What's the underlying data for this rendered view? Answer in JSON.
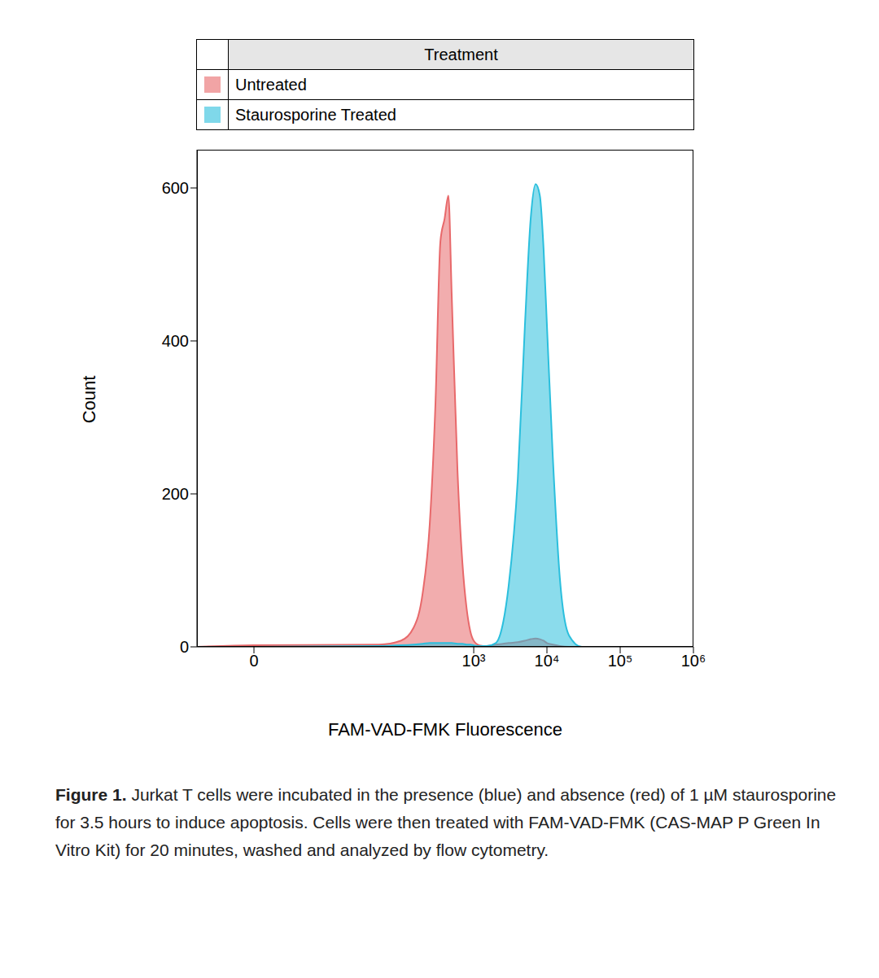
{
  "chart_data": {
    "type": "area",
    "legend_title": "Treatment",
    "x_label": "FAM-VAD-FMK Fluorescence",
    "y_label": "Count",
    "caption_label": "Figure 1.",
    "caption": "Jurkat T cells were incubated in the presence (blue) and absence (red) of 1 µM staurosporine for 3.5 hours to induce apoptosis. Cells were then treated with FAM-VAD-FMK (CAS-MAP P Green In Vitro Kit) for 20 minutes, washed and analyzed by flow cytometry.",
    "log": "x",
    "x": [
      -5,
      0,
      50,
      100,
      150,
      200,
      250,
      300,
      350,
      400,
      450,
      500,
      600,
      700,
      800,
      900,
      1000,
      1200,
      1500,
      2000,
      2500,
      3000,
      4000,
      5000,
      6000,
      7000,
      8000,
      9000,
      10000,
      12000,
      15000,
      20000,
      30000,
      100000,
      1000000
    ],
    "series": [
      {
        "name": "Untreated",
        "color": "#e8696b",
        "values": [
          0,
          2,
          3,
          8,
          25,
          70,
          160,
          320,
          530,
          560,
          590,
          460,
          230,
          110,
          50,
          20,
          8,
          2,
          1,
          3,
          4,
          5,
          6,
          8,
          10,
          11,
          10,
          8,
          5,
          3,
          1,
          0,
          0,
          0,
          0
        ]
      },
      {
        "name": "Staurosporine Treated",
        "color": "#2bbfdd",
        "values": [
          0,
          0,
          1,
          2,
          3,
          4,
          5,
          5,
          5,
          5,
          5,
          5,
          4,
          4,
          3,
          3,
          2,
          1,
          1,
          5,
          30,
          80,
          220,
          420,
          560,
          605,
          590,
          520,
          420,
          250,
          90,
          15,
          0,
          0,
          0
        ]
      }
    ],
    "xlim": [
      -5,
      1000000
    ],
    "xticks": [
      {
        "value": 0,
        "label": "0"
      },
      {
        "value": 1000,
        "label": "10³"
      },
      {
        "value": 10000,
        "label": "10⁴"
      },
      {
        "value": 100000,
        "label": "10⁵"
      },
      {
        "value": 1000000,
        "label": "10⁶"
      }
    ],
    "ylim": [
      0,
      650
    ],
    "yticks": [
      0,
      200,
      400,
      600
    ]
  }
}
